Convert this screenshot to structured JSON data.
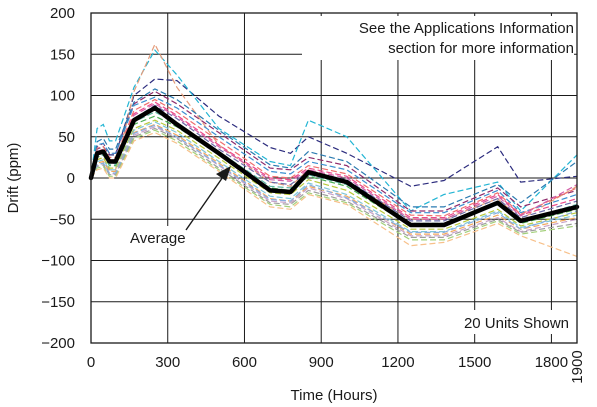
{
  "chart_data": {
    "type": "line",
    "xlabel": "Time (Hours)",
    "ylabel": "Drift (ppm)",
    "xlim": [
      0,
      1900
    ],
    "ylim": [
      -200,
      200
    ],
    "x_ticks": [
      0,
      300,
      600,
      900,
      1200,
      1500,
      1800
    ],
    "x_tick_labels": [
      "0",
      "300",
      "600",
      "900",
      "1200",
      "1500",
      "1800"
    ],
    "x_end_tick_label": "1900",
    "x_end_tick_value": 1900,
    "y_ticks": [
      200,
      150,
      100,
      50,
      0,
      -50,
      -100,
      -150,
      -200
    ],
    "y_tick_labels": [
      "200",
      "150",
      "100",
      "50",
      "0",
      "−50",
      "−100",
      "−150",
      "−200"
    ],
    "grid": true,
    "annotations": {
      "note_line1": "See the Applications Information",
      "note_line2": "section for more information",
      "units_shown": "20 Units Shown",
      "average_label": "Average"
    },
    "average_series": {
      "x": [
        0,
        24,
        48,
        72,
        96,
        168,
        250,
        336,
        500,
        700,
        780,
        850,
        1000,
        1250,
        1380,
        1590,
        1680,
        1900
      ],
      "y": [
        0,
        30,
        32,
        20,
        20,
        70,
        85,
        65,
        30,
        -15,
        -17,
        7,
        -5,
        -57,
        -57,
        -30,
        -52,
        -35
      ]
    },
    "unit_series": [
      {
        "color": "#2c2c7e",
        "y": [
          0,
          35,
          38,
          28,
          28,
          100,
          120,
          118,
          75,
          37,
          30,
          50,
          30,
          -10,
          -3,
          38,
          -5,
          2
        ]
      },
      {
        "color": "#22b5d4",
        "y": [
          0,
          60,
          65,
          45,
          45,
          110,
          155,
          125,
          60,
          20,
          15,
          70,
          50,
          -40,
          -20,
          -5,
          -40,
          28
        ]
      },
      {
        "color": "#8e2b6c",
        "y": [
          0,
          38,
          42,
          30,
          30,
          90,
          105,
          90,
          55,
          12,
          10,
          25,
          15,
          -40,
          -40,
          -12,
          -35,
          -15
        ]
      },
      {
        "color": "#e49b7a",
        "y": [
          0,
          22,
          25,
          10,
          10,
          105,
          162,
          110,
          40,
          -5,
          -10,
          10,
          -5,
          -50,
          -50,
          -25,
          -50,
          -10
        ]
      },
      {
        "color": "#3b8fd0",
        "y": [
          0,
          40,
          42,
          30,
          30,
          88,
          98,
          85,
          50,
          8,
          5,
          20,
          10,
          -42,
          -42,
          -15,
          -42,
          -20
        ]
      },
      {
        "color": "#ec4a8a",
        "y": [
          0,
          32,
          35,
          22,
          22,
          78,
          92,
          76,
          40,
          0,
          -2,
          12,
          2,
          -48,
          -48,
          -20,
          -45,
          -25
        ]
      },
      {
        "color": "#6a6aa8",
        "y": [
          0,
          28,
          30,
          18,
          18,
          72,
          88,
          72,
          35,
          -5,
          -8,
          8,
          -2,
          -52,
          -52,
          -25,
          -48,
          -28
        ]
      },
      {
        "color": "#4cae52",
        "y": [
          0,
          25,
          28,
          15,
          15,
          65,
          75,
          62,
          28,
          -12,
          -15,
          2,
          -10,
          -58,
          -58,
          -32,
          -55,
          -38
        ]
      },
      {
        "color": "#b9c93a",
        "y": [
          0,
          22,
          25,
          12,
          12,
          60,
          70,
          58,
          24,
          -18,
          -20,
          -2,
          -15,
          -62,
          -62,
          -38,
          -58,
          -42
        ]
      },
      {
        "color": "#7fc6d8",
        "y": [
          0,
          20,
          22,
          10,
          10,
          58,
          68,
          55,
          20,
          -22,
          -25,
          -6,
          -20,
          -65,
          -65,
          -40,
          -60,
          -45
        ]
      },
      {
        "color": "#f2a85c",
        "y": [
          0,
          18,
          20,
          8,
          8,
          55,
          65,
          52,
          18,
          -25,
          -28,
          -10,
          -22,
          -68,
          -68,
          -45,
          -62,
          -48
        ]
      },
      {
        "color": "#c8a2c8",
        "y": [
          0,
          15,
          18,
          5,
          5,
          52,
          62,
          50,
          15,
          -28,
          -30,
          -12,
          -25,
          -70,
          -70,
          -48,
          -65,
          -50
        ]
      },
      {
        "color": "#9e9e9e",
        "y": [
          0,
          14,
          16,
          4,
          4,
          50,
          60,
          48,
          12,
          -30,
          -32,
          -15,
          -28,
          -72,
          -72,
          -50,
          -66,
          -55
        ]
      },
      {
        "color": "#f06e6e",
        "y": [
          0,
          36,
          38,
          25,
          25,
          82,
          95,
          80,
          45,
          2,
          0,
          15,
          5,
          -45,
          -46,
          -18,
          -44,
          -12
        ]
      },
      {
        "color": "#5fb6a0",
        "y": [
          0,
          26,
          28,
          16,
          16,
          68,
          80,
          66,
          32,
          -10,
          -12,
          4,
          -8,
          -55,
          -55,
          -30,
          -52,
          -32
        ]
      },
      {
        "color": "#a3d07a",
        "y": [
          0,
          12,
          14,
          2,
          2,
          48,
          58,
          45,
          10,
          -32,
          -35,
          -18,
          -30,
          -75,
          -75,
          -52,
          -68,
          -58
        ]
      },
      {
        "color": "#f7c08a",
        "y": [
          0,
          10,
          12,
          0,
          0,
          45,
          55,
          42,
          8,
          -35,
          -38,
          -20,
          -32,
          -82,
          -78,
          -55,
          -70,
          -95
        ]
      },
      {
        "color": "#2a7ab0",
        "y": [
          0,
          44,
          48,
          35,
          35,
          92,
          108,
          95,
          58,
          16,
          12,
          32,
          20,
          -35,
          -35,
          -8,
          -30,
          20
        ]
      },
      {
        "color": "#d35fa8",
        "y": [
          0,
          30,
          33,
          20,
          20,
          76,
          90,
          74,
          38,
          -2,
          -4,
          10,
          0,
          -50,
          -50,
          -22,
          -46,
          -8
        ]
      },
      {
        "color": "#87aee0",
        "y": [
          0,
          16,
          18,
          6,
          6,
          54,
          64,
          50,
          16,
          -26,
          -28,
          -8,
          -24,
          -66,
          -66,
          -42,
          -62,
          -40
        ]
      }
    ]
  }
}
